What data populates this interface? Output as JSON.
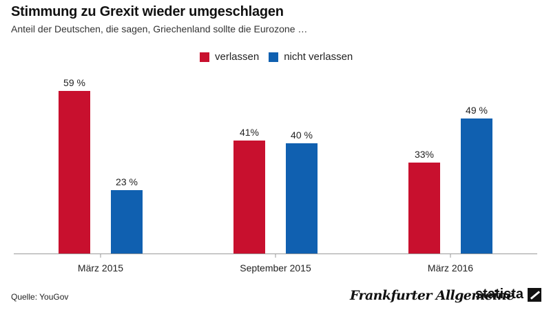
{
  "header": {
    "title": "Stimmung zu Grexit wieder umgeschlagen",
    "subtitle": "Anteil der Deutschen, die sagen, Griechenland sollte die Eurozone …"
  },
  "colors": {
    "verlassen": "#c8102e",
    "nicht_verlassen": "#1060b0",
    "axis": "#9a9a9a"
  },
  "chart_data": {
    "type": "bar",
    "title": "Stimmung zu Grexit wieder umgeschlagen",
    "subtitle": "Anteil der Deutschen, die sagen, Griechenland sollte die Eurozone …",
    "categories": [
      "März 2015",
      "September 2015",
      "März 2016"
    ],
    "series": [
      {
        "name": "verlassen",
        "values": [
          59,
          41,
          33
        ],
        "labels": [
          "59 %",
          "41%",
          "33%"
        ]
      },
      {
        "name": "nicht verlassen",
        "values": [
          23,
          40,
          49
        ],
        "labels": [
          "23 %",
          "40 %",
          "49 %"
        ]
      }
    ],
    "unit": "%",
    "ylim": [
      0,
      70
    ],
    "grid": false,
    "legend": "top-center",
    "xlabel": "",
    "ylabel": ""
  },
  "footer": {
    "source": "Quelle: YouGov",
    "publisher": "Frankfurter Allgemeine",
    "brand": "statista"
  }
}
